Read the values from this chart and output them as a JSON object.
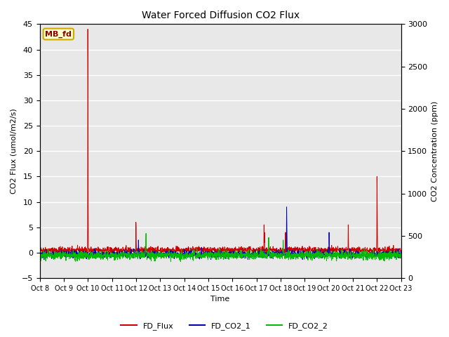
{
  "title": "Water Forced Diffusion CO2 Flux",
  "xlabel": "Time",
  "ylabel_left": "CO2 Flux (umol/m2/s)",
  "ylabel_right": "CO2 Concentration (ppm)",
  "ylim_left": [
    -5,
    45
  ],
  "ylim_right": [
    0,
    3000
  ],
  "fig_bg_color": "#ffffff",
  "plot_bg_color": "#e8e8e8",
  "grid_color": "#ffffff",
  "line_colors": {
    "FD_Flux": "#cc0000",
    "FD_CO2_1": "#0000bb",
    "FD_CO2_2": "#00bb00"
  },
  "legend_label": "MB_fd",
  "xtick_labels": [
    "Oct 8",
    "Oct 9",
    "Oct 10",
    "Oct 11",
    "Oct 12",
    "Oct 13",
    "Oct 14",
    "Oct 15",
    "Oct 16",
    "Oct 17",
    "Oct 18",
    "Oct 19",
    "Oct 20",
    "Oct 21",
    "Oct 22",
    "Oct 23"
  ],
  "n_points": 2000,
  "seed": 42
}
